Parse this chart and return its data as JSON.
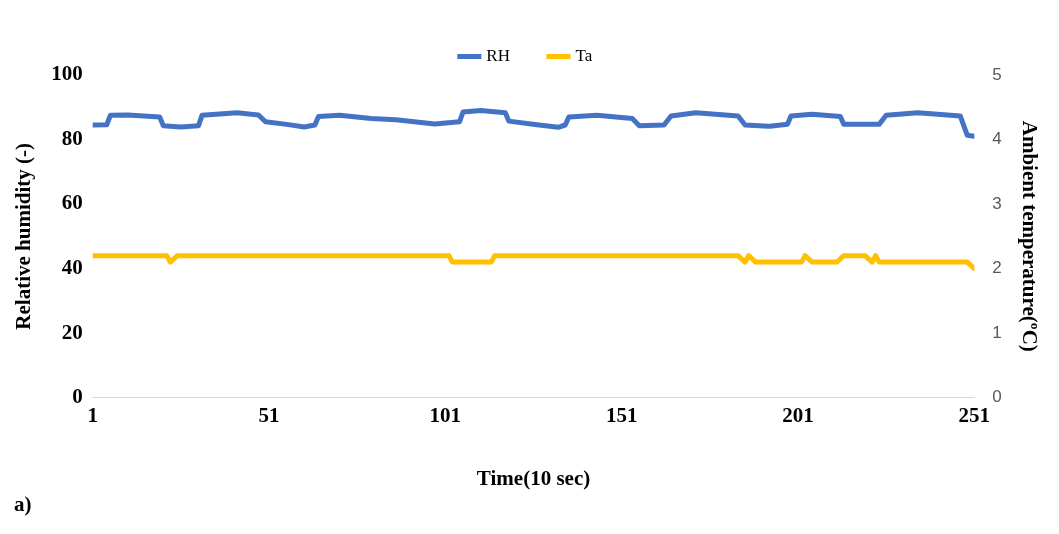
{
  "chart_data": {
    "type": "line",
    "xlabel": "Time(10 sec)",
    "ylabel": "Relative humidity (-)",
    "y2label": "Ambient temperature(ºC)",
    "xlim": [
      1,
      251
    ],
    "xticks": [
      1,
      51,
      101,
      151,
      201,
      251
    ],
    "ylim": [
      0,
      100
    ],
    "yticks": [
      0,
      20,
      40,
      60,
      80,
      100
    ],
    "y2lim": [
      0,
      5
    ],
    "y2ticks": [
      0,
      1,
      2,
      3,
      4,
      5
    ],
    "legend": "top",
    "grid": false,
    "marker": "none",
    "line_style": "solid",
    "annotations": [
      "a)"
    ],
    "series": [
      {
        "name": "RH",
        "color": "#4472c4",
        "x": [
          1,
          5,
          6,
          11,
          20,
          21,
          26,
          31,
          32,
          42,
          48,
          50,
          56,
          61,
          64,
          65,
          71,
          80,
          87,
          98,
          105,
          106,
          111,
          118,
          119,
          127,
          133,
          135,
          136,
          144,
          154,
          156,
          163,
          165,
          172,
          184,
          186,
          193,
          198,
          199,
          205,
          213,
          214,
          224,
          226,
          235,
          247,
          249,
          251
        ],
        "values": [
          84.5,
          84.6,
          87.5,
          87.6,
          87.0,
          84.3,
          83.9,
          84.3,
          87.5,
          88.3,
          87.6,
          85.5,
          84.7,
          83.9,
          84.5,
          87.1,
          87.5,
          86.5,
          86.1,
          84.8,
          85.5,
          88.5,
          89.0,
          88.3,
          85.7,
          84.6,
          83.8,
          84.5,
          87.0,
          87.5,
          86.5,
          84.3,
          84.5,
          87.3,
          88.3,
          87.3,
          84.5,
          84.1,
          84.7,
          87.3,
          87.8,
          87.1,
          84.7,
          84.7,
          87.5,
          88.3,
          87.3,
          81.3,
          81.0
        ]
      },
      {
        "name": "Ta",
        "color": "#ffc000",
        "axis": "y2",
        "x": [
          1,
          22,
          23,
          25,
          102,
          103,
          104,
          114,
          115,
          184,
          186,
          187,
          189,
          202,
          203,
          205,
          212,
          214,
          220,
          222,
          223,
          224,
          249,
          251
        ],
        "values": [
          2.2,
          2.2,
          2.1,
          2.2,
          2.2,
          2.1,
          2.1,
          2.1,
          2.2,
          2.2,
          2.1,
          2.2,
          2.1,
          2.1,
          2.2,
          2.1,
          2.1,
          2.2,
          2.2,
          2.1,
          2.2,
          2.1,
          2.1,
          2.0
        ]
      }
    ]
  }
}
